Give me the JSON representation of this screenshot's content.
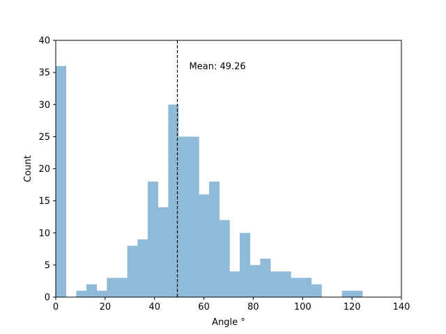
{
  "chart_data": {
    "type": "bar",
    "subtype": "histogram",
    "xlabel": "Angle °",
    "ylabel": "Count",
    "xlim": [
      0,
      140
    ],
    "ylim": [
      0,
      40
    ],
    "xticks": [
      0,
      20,
      40,
      60,
      80,
      100,
      120,
      140
    ],
    "yticks": [
      0,
      5,
      10,
      15,
      20,
      25,
      30,
      35,
      40
    ],
    "bin_width": 4.14,
    "bins": [
      {
        "x0": 0.0,
        "count": 36
      },
      {
        "x0": 4.14,
        "count": 0
      },
      {
        "x0": 8.28,
        "count": 1
      },
      {
        "x0": 12.42,
        "count": 2
      },
      {
        "x0": 16.56,
        "count": 1
      },
      {
        "x0": 20.7,
        "count": 3
      },
      {
        "x0": 24.84,
        "count": 3
      },
      {
        "x0": 28.98,
        "count": 8
      },
      {
        "x0": 33.12,
        "count": 9
      },
      {
        "x0": 37.26,
        "count": 18
      },
      {
        "x0": 41.4,
        "count": 14
      },
      {
        "x0": 45.54,
        "count": 30
      },
      {
        "x0": 49.68,
        "count": 25
      },
      {
        "x0": 53.82,
        "count": 25
      },
      {
        "x0": 57.96,
        "count": 16
      },
      {
        "x0": 62.1,
        "count": 18
      },
      {
        "x0": 66.24,
        "count": 12
      },
      {
        "x0": 70.38,
        "count": 4
      },
      {
        "x0": 74.52,
        "count": 10
      },
      {
        "x0": 78.66,
        "count": 5
      },
      {
        "x0": 82.8,
        "count": 6
      },
      {
        "x0": 86.94,
        "count": 4
      },
      {
        "x0": 91.08,
        "count": 4
      },
      {
        "x0": 95.22,
        "count": 3
      },
      {
        "x0": 99.36,
        "count": 3
      },
      {
        "x0": 103.5,
        "count": 2
      },
      {
        "x0": 107.64,
        "count": 0
      },
      {
        "x0": 111.78,
        "count": 0
      },
      {
        "x0": 115.92,
        "count": 1
      },
      {
        "x0": 120.06,
        "count": 1
      }
    ],
    "bar_color": "#8fbbd9",
    "mean_line": {
      "value": 49.26,
      "style": "dashed",
      "color": "#000000"
    },
    "annotation": "Mean: 49.26",
    "grid": false,
    "legend": "none"
  }
}
